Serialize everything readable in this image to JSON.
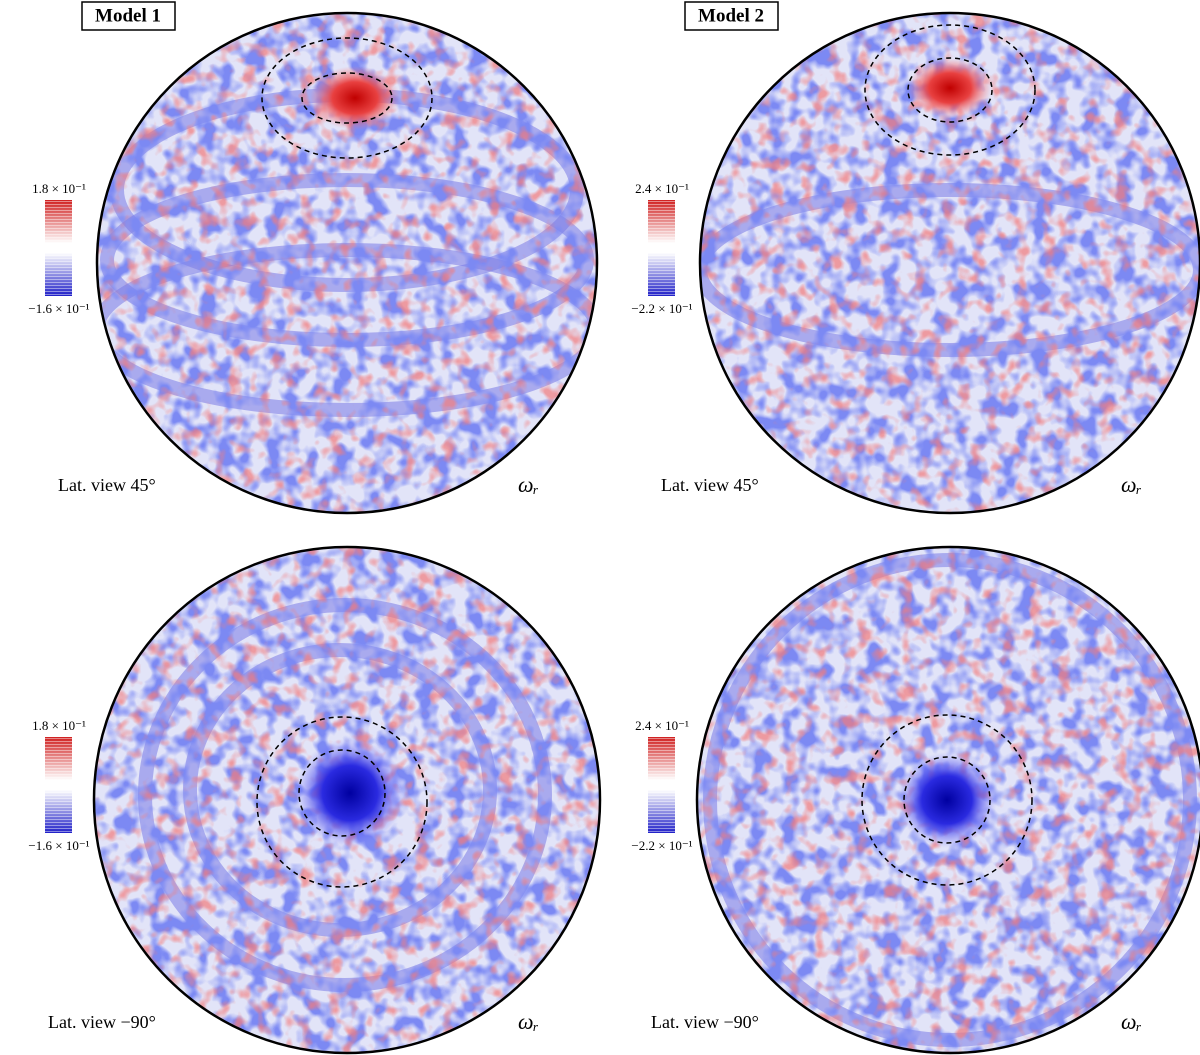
{
  "panels": [
    {
      "title": "Model 1",
      "colorbar_max": "1.8 × 10⁻¹",
      "colorbar_min": "−1.6 × 10⁻¹",
      "view": "Lat. view 45°",
      "quantity": "ωᵣ"
    },
    {
      "title": "Model 2",
      "colorbar_max": "2.4 × 10⁻¹",
      "colorbar_min": "−2.2 × 10⁻¹",
      "view": "Lat. view 45°",
      "quantity": "ωᵣ"
    },
    {
      "colorbar_max": "1.8 × 10⁻¹",
      "colorbar_min": "−1.6 × 10⁻¹",
      "view": "Lat. view −90°",
      "quantity": "ωᵣ"
    },
    {
      "colorbar_max": "2.4 × 10⁻¹",
      "colorbar_min": "−2.2 × 10⁻¹",
      "view": "Lat. view −90°",
      "quantity": "ωᵣ"
    }
  ]
}
